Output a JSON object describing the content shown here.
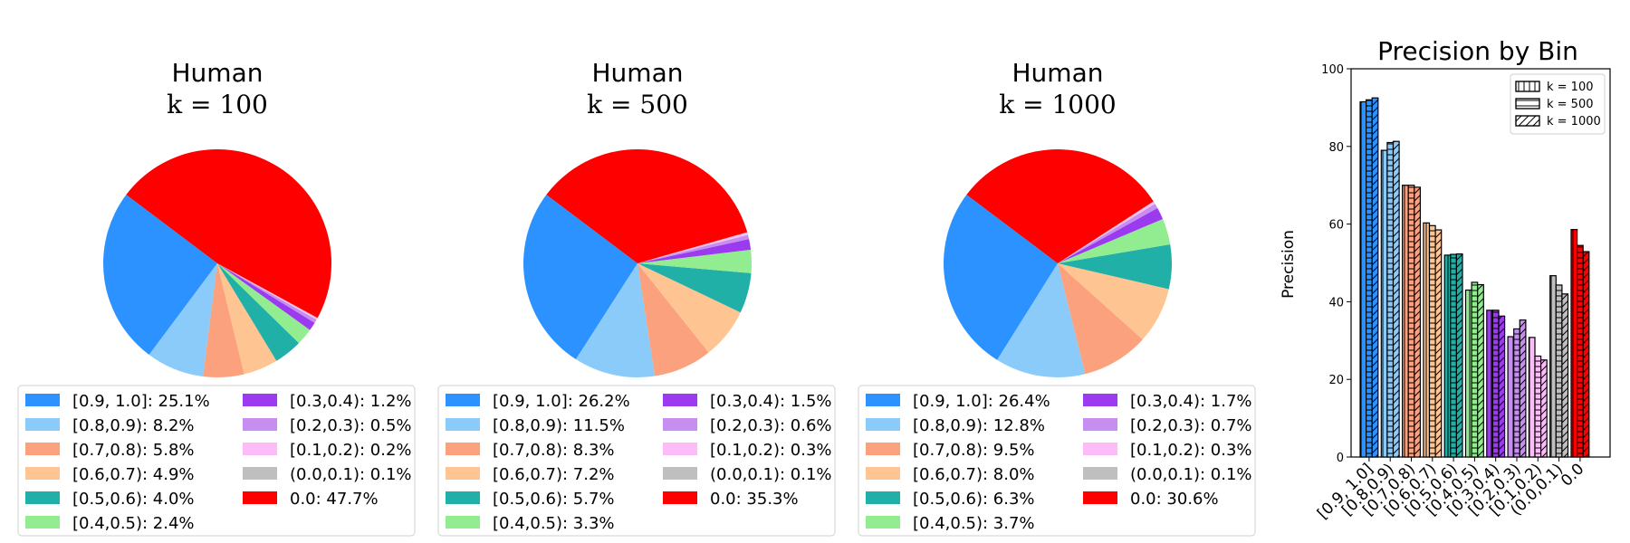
{
  "colors": {
    "[0.9, 1.0]": "#2c92ff",
    "[0.8,0.9)": "#8acbfa",
    "[0.7,0.8)": "#fba17e",
    "[0.6,0.7)": "#fec592",
    "[0.5,0.6)": "#21b0a7",
    "[0.4,0.5)": "#92ec90",
    "[0.3,0.4)": "#9c3af0",
    "[0.2,0.3)": "#c68ef0",
    "[0.1,0.2)": "#fbbcf7",
    "(0.0,0.1)": "#bfbfbf",
    "0.0": "#fe0000"
  },
  "chart_data": [
    {
      "type": "pie",
      "title": "Human",
      "subtitle": "k = 100",
      "labels": [
        "[0.9, 1.0]",
        "[0.8,0.9)",
        "[0.7,0.8)",
        "[0.6,0.7)",
        "[0.5,0.6)",
        "[0.4,0.5)",
        "[0.3,0.4)",
        "[0.2,0.3)",
        "[0.1,0.2)",
        "(0.0,0.1)",
        "0.0"
      ],
      "values": [
        25.1,
        8.2,
        5.8,
        4.9,
        4.0,
        2.4,
        1.2,
        0.5,
        0.2,
        0.1,
        47.7
      ],
      "legend_labels": [
        "[0.9, 1.0]: 25.1%",
        "[0.8,0.9): 8.2%",
        "[0.7,0.8): 5.8%",
        "[0.6,0.7): 4.9%",
        "[0.5,0.6): 4.0%",
        "[0.4,0.5): 2.4%",
        "[0.3,0.4): 1.2%",
        "[0.2,0.3): 0.5%",
        "[0.1,0.2): 0.2%",
        "(0.0,0.1): 0.1%",
        "0.0: 47.7%"
      ],
      "legend_placement": "bottom"
    },
    {
      "type": "pie",
      "title": "Human",
      "subtitle": "k = 500",
      "labels": [
        "[0.9, 1.0]",
        "[0.8,0.9)",
        "[0.7,0.8)",
        "[0.6,0.7)",
        "[0.5,0.6)",
        "[0.4,0.5)",
        "[0.3,0.4)",
        "[0.2,0.3)",
        "[0.1,0.2)",
        "(0.0,0.1)",
        "0.0"
      ],
      "values": [
        26.2,
        11.5,
        8.3,
        7.2,
        5.7,
        3.3,
        1.5,
        0.6,
        0.3,
        0.1,
        35.3
      ],
      "legend_labels": [
        "[0.9, 1.0]: 26.2%",
        "[0.8,0.9): 11.5%",
        "[0.7,0.8): 8.3%",
        "[0.6,0.7): 7.2%",
        "[0.5,0.6): 5.7%",
        "[0.4,0.5): 3.3%",
        "[0.3,0.4): 1.5%",
        "[0.2,0.3): 0.6%",
        "[0.1,0.2): 0.3%",
        "(0.0,0.1): 0.1%",
        "0.0: 35.3%"
      ],
      "legend_placement": "bottom"
    },
    {
      "type": "pie",
      "title": "Human",
      "subtitle": "k = 1000",
      "labels": [
        "[0.9, 1.0]",
        "[0.8,0.9)",
        "[0.7,0.8)",
        "[0.6,0.7)",
        "[0.5,0.6)",
        "[0.4,0.5)",
        "[0.3,0.4)",
        "[0.2,0.3)",
        "[0.1,0.2)",
        "(0.0,0.1)",
        "0.0"
      ],
      "values": [
        26.4,
        12.8,
        9.5,
        8.0,
        6.3,
        3.7,
        1.7,
        0.7,
        0.3,
        0.1,
        30.6
      ],
      "legend_labels": [
        "[0.9, 1.0]: 26.4%",
        "[0.8,0.9): 12.8%",
        "[0.7,0.8): 9.5%",
        "[0.6,0.7): 8.0%",
        "[0.5,0.6): 6.3%",
        "[0.4,0.5): 3.7%",
        "[0.3,0.4): 1.7%",
        "[0.2,0.3): 0.7%",
        "[0.1,0.2): 0.3%",
        "(0.0,0.1): 0.1%",
        "0.0: 30.6%"
      ],
      "legend_placement": "bottom"
    },
    {
      "type": "bar",
      "title": "Precision by Bin",
      "xlabel": "",
      "ylabel": "Precision",
      "ylim": [
        0,
        100
      ],
      "yticks": [
        0,
        20,
        40,
        60,
        80,
        100
      ],
      "categories": [
        "[0.9, 1.0]",
        "[0.8,0.9)",
        "[0.7,0.8)",
        "[0.6,0.7)",
        "[0.5,0.6)",
        "[0.4,0.5)",
        "[0.3,0.4)",
        "[0.2,0.3)",
        "[0.1,0.2)",
        "(0.0,0.1)",
        "0.0"
      ],
      "series": [
        {
          "name": "k = 100",
          "hatch": "|",
          "values": [
            91.5,
            79.0,
            70.0,
            60.3,
            52.0,
            43.0,
            37.8,
            31.0,
            30.8,
            46.7,
            58.6
          ]
        },
        {
          "name": "k = 500",
          "hatch": "-",
          "values": [
            92.0,
            81.0,
            70.0,
            59.6,
            52.2,
            45.0,
            37.8,
            33.0,
            26.0,
            44.3,
            54.5
          ]
        },
        {
          "name": "k = 1000",
          "hatch": "/",
          "values": [
            92.5,
            81.3,
            69.5,
            58.5,
            52.3,
            44.4,
            36.3,
            35.3,
            25.0,
            42.0,
            52.9
          ]
        }
      ],
      "legend_labels": [
        "k = 100",
        "k = 500",
        "k = 1000"
      ],
      "legend_placement": "top-right",
      "grid": false
    }
  ]
}
